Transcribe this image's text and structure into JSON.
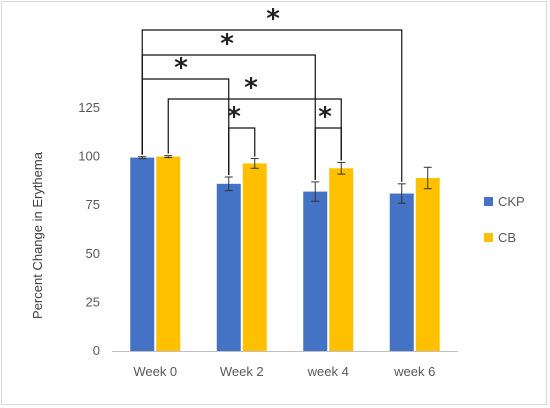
{
  "chart_data": {
    "type": "bar",
    "categories": [
      "Week 0",
      "Week 2",
      "week 4",
      "week 6"
    ],
    "series": [
      {
        "name": "CKP",
        "color": "#4472C4",
        "values": [
          99.5,
          86,
          82,
          81
        ],
        "errors": [
          0.5,
          3.5,
          5,
          5
        ]
      },
      {
        "name": "CB",
        "color": "#FFC000",
        "values": [
          100,
          96.5,
          94,
          89
        ],
        "errors": [
          0.5,
          2.5,
          3,
          5.5
        ]
      }
    ],
    "title": "",
    "xlabel": "",
    "ylabel": "Percent Change in Erythema",
    "ylim": [
      0,
      125
    ],
    "yticks": [
      0,
      25,
      50,
      75,
      100,
      125
    ],
    "grid": false,
    "legend_position": "right",
    "significance_brackets": [
      {
        "from": "Week 0 CKP",
        "to": "week 6 CKP",
        "label": "*"
      },
      {
        "from": "Week 0 CKP",
        "to": "week 4 CKP",
        "label": "*"
      },
      {
        "from": "Week 0 CKP",
        "to": "Week 2 CKP",
        "label": "*"
      },
      {
        "from": "Week 0 CB",
        "to": "week 4 CB",
        "label": "*"
      },
      {
        "from": "Week 2 CKP",
        "to": "Week 2 CB",
        "label": "*"
      },
      {
        "from": "week 4 CKP",
        "to": "week 4 CB",
        "label": "*"
      }
    ]
  }
}
